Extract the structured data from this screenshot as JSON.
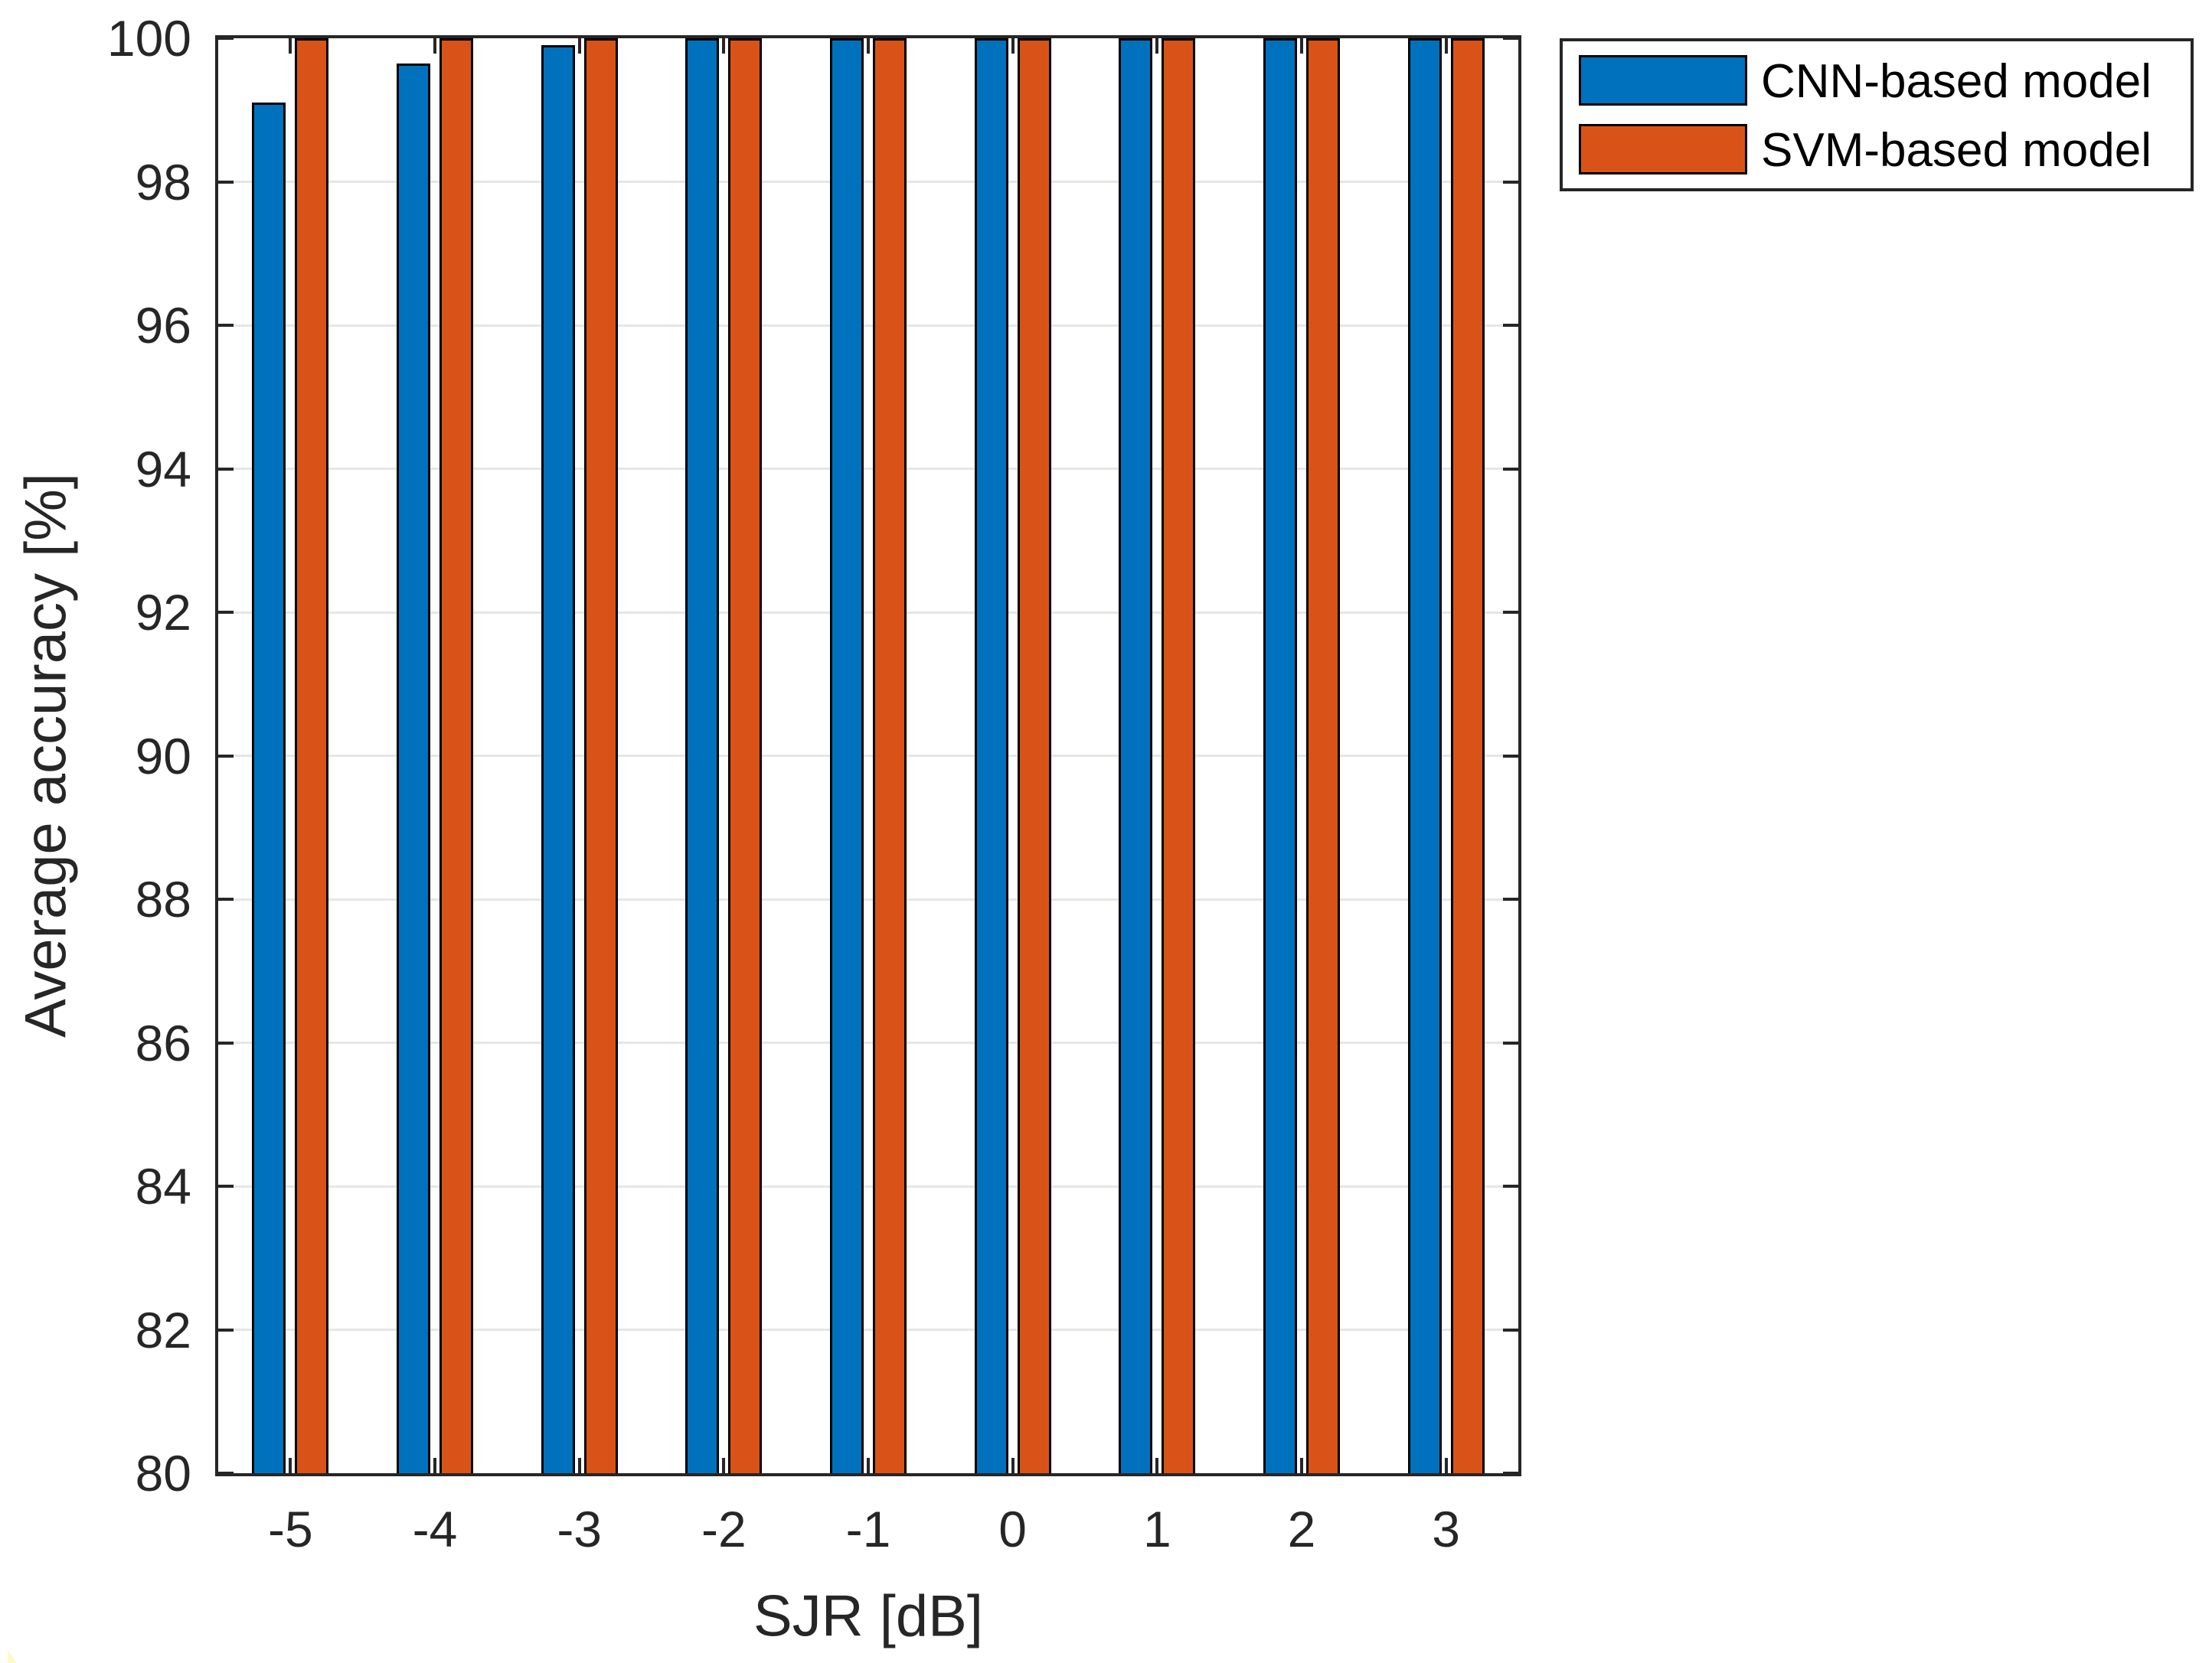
{
  "figure": {
    "background_color": "#FFFFFF",
    "axis_color": "#262626",
    "gridline_color": "#E6E6E6",
    "bar_edge_color": "#000000"
  },
  "chart_data": {
    "type": "bar",
    "title": "",
    "xlabel": "SJR [dB]",
    "ylabel": "Average accuracy [%]",
    "categories": [
      "-5",
      "-4",
      "-3",
      "-2",
      "-1",
      "0",
      "1",
      "2",
      "3"
    ],
    "series": [
      {
        "name": "CNN-based model",
        "color": "#0072BD",
        "values": [
          99.1,
          99.65,
          99.9,
          100,
          100,
          100,
          100,
          100,
          100
        ]
      },
      {
        "name": "SVM-based model",
        "color": "#D95319",
        "values": [
          100,
          100,
          100,
          100,
          100,
          100,
          100,
          100,
          100
        ]
      }
    ],
    "ylim": [
      80,
      100
    ],
    "yticks": [
      80,
      82,
      84,
      86,
      88,
      90,
      92,
      94,
      96,
      98,
      100
    ],
    "grid": "horizontal-only",
    "legend_position": "outside-top-right",
    "tick_direction": "in"
  }
}
